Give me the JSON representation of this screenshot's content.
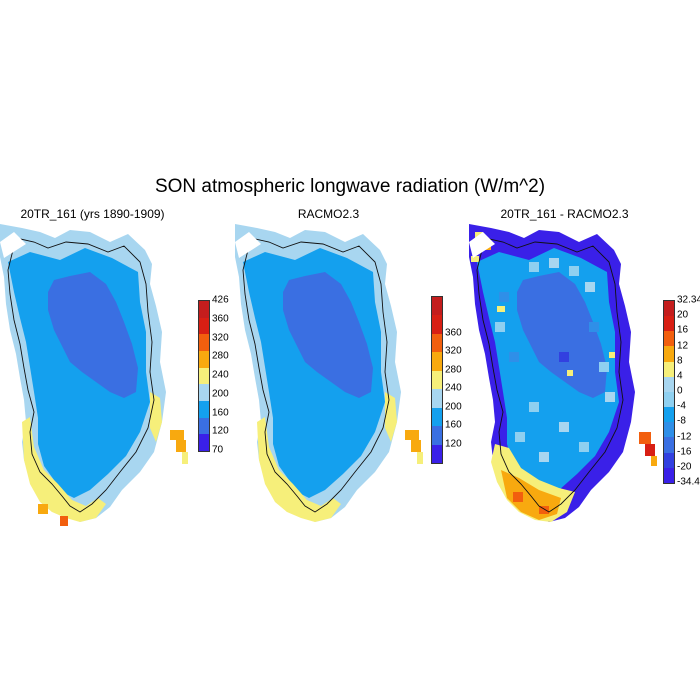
{
  "title": "SON atmospheric longwave radiation (W/m^2)",
  "panels": [
    {
      "title": "20TR_161 (yrs 1890-1909)",
      "colorbar": {
        "colors": [
          "#3a20e8",
          "#3a6fe2",
          "#14a0ee",
          "#a8d6f0",
          "#f6ef7a",
          "#f8a90f",
          "#f25f0e",
          "#d81f14",
          "#c41d1d"
        ],
        "labels": [
          "70",
          "120",
          "160",
          "200",
          "240",
          "280",
          "320",
          "360",
          "426"
        ]
      }
    },
    {
      "title": "RACMO2.3",
      "colorbar": {
        "colors": [
          "#3a20e8",
          "#3a6fe2",
          "#14a0ee",
          "#a8d6f0",
          "#f6ef7a",
          "#f8a90f",
          "#f25f0e",
          "#d81f14",
          "#c41d1d"
        ],
        "labels": [
          "120",
          "160",
          "200",
          "240",
          "280",
          "320",
          "360"
        ]
      }
    },
    {
      "title": "20TR_161 - RACMO2.3",
      "colorbar": {
        "colors": [
          "#3a20e8",
          "#3240e0",
          "#3a6fe2",
          "#2f8fe8",
          "#14a0ee",
          "#8fd0f0",
          "#a8d6f0",
          "#f6ef7a",
          "#f8a90f",
          "#f25f0e",
          "#d81f14",
          "#c41d1d"
        ],
        "labels": [
          "-34.4",
          "-20",
          "-16",
          "-12",
          "-8",
          "-4",
          "0",
          "4",
          "8",
          "12",
          "16",
          "20",
          "32.34"
        ]
      }
    }
  ]
}
